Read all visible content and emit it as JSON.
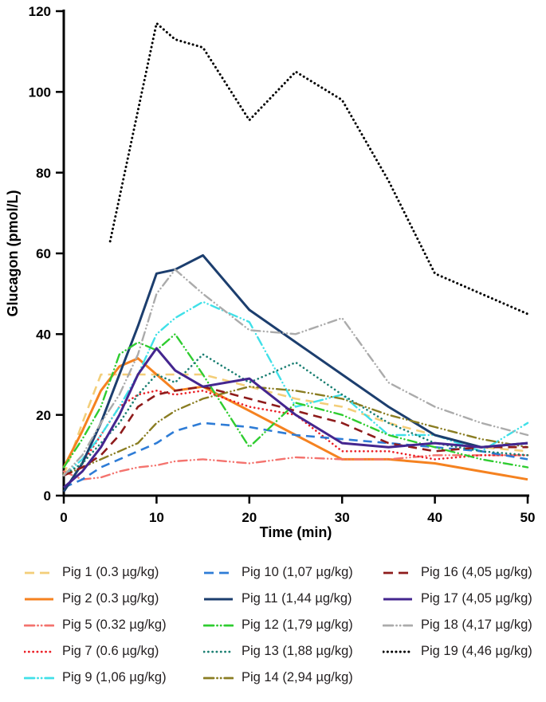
{
  "chart_data": {
    "type": "line",
    "title": "",
    "xlabel": "Time (min)",
    "ylabel": "Glucagon (pmol/L)",
    "xlim": [
      0,
      50
    ],
    "ylim": [
      0,
      120
    ],
    "xticks": [
      0,
      10,
      20,
      30,
      40,
      50
    ],
    "yticks": [
      0,
      20,
      40,
      60,
      80,
      100,
      120
    ],
    "grid": false,
    "legend_position": "bottom",
    "series": [
      {
        "name": "Pig 1 (0.3 µg/kg)",
        "color": "#F3CE79",
        "style": "dashed",
        "width": 2.6,
        "x": [
          0,
          2,
          4,
          6,
          8,
          10,
          12,
          15,
          20,
          25,
          30,
          35,
          40,
          45,
          50
        ],
        "y": [
          5,
          18,
          30,
          30,
          30,
          30,
          30,
          30,
          27,
          24,
          22,
          18,
          15,
          12,
          11
        ]
      },
      {
        "name": "Pig 2 (0.3 µg/kg)",
        "color": "#F58220",
        "style": "solid",
        "width": 3,
        "x": [
          0,
          2,
          4,
          6,
          8,
          10,
          12,
          15,
          20,
          25,
          30,
          35,
          40,
          45,
          50
        ],
        "y": [
          7,
          16,
          26,
          32,
          34,
          30,
          26,
          27,
          21,
          15,
          9,
          9,
          8,
          6,
          4
        ]
      },
      {
        "name": "Pig 5 (0.32 µg/kg)",
        "color": "#F4736E",
        "style": "dashdotdot",
        "width": 2.4,
        "x": [
          0,
          2,
          4,
          6,
          8,
          10,
          12,
          15,
          20,
          25,
          30,
          35,
          40,
          45,
          50
        ],
        "y": [
          6,
          4,
          4.5,
          6,
          7,
          7.5,
          8.5,
          9,
          8,
          9.5,
          9,
          9,
          10,
          10,
          10
        ]
      },
      {
        "name": "Pig 7 (0.6 µg/kg)",
        "color": "#EB2027",
        "style": "dotted",
        "width": 2.6,
        "x": [
          0,
          2,
          4,
          6,
          8,
          10,
          12,
          15,
          20,
          25,
          30,
          35,
          40,
          45,
          50
        ],
        "y": [
          5,
          8,
          15,
          22,
          25,
          26,
          25,
          26,
          22,
          20,
          11,
          11,
          9,
          10,
          10
        ]
      },
      {
        "name": "Pig 9 (1,06 µg/kg)",
        "color": "#40E0E8",
        "style": "dashdotdot",
        "width": 2.4,
        "x": [
          0,
          2,
          4,
          6,
          8,
          10,
          12,
          15,
          20,
          25,
          30,
          35,
          40,
          45,
          50
        ],
        "y": [
          5,
          9,
          15,
          22,
          30,
          40,
          44,
          48,
          43,
          22,
          25,
          15,
          15,
          11,
          18
        ]
      },
      {
        "name": "Pig 10 (1,07 µg/kg)",
        "color": "#2E7CD6",
        "style": "dashed",
        "width": 2.6,
        "x": [
          0,
          2,
          4,
          6,
          8,
          10,
          12,
          15,
          20,
          25,
          30,
          35,
          40,
          45,
          50
        ],
        "y": [
          2,
          4,
          7,
          9,
          11,
          13,
          16,
          18,
          17,
          15,
          14,
          13,
          12,
          11,
          9
        ]
      },
      {
        "name": "Pig 11 (1,44 µg/kg)",
        "color": "#1C3E6E",
        "style": "solid",
        "width": 3,
        "x": [
          0,
          2,
          4,
          6,
          8,
          10,
          12,
          15,
          20,
          25,
          30,
          35,
          40,
          45,
          50
        ],
        "y": [
          1,
          8,
          18,
          30,
          42,
          55,
          56,
          59.5,
          46,
          38,
          30,
          22,
          15,
          12,
          13
        ]
      },
      {
        "name": "Pig 12 (1,79 µg/kg)",
        "color": "#2FCC30",
        "style": "dashdotdot",
        "width": 2.4,
        "x": [
          0,
          2,
          4,
          6,
          8,
          10,
          12,
          15,
          20,
          25,
          30,
          35,
          40,
          45,
          50
        ],
        "y": [
          7,
          14,
          22,
          35,
          38,
          36,
          40,
          30,
          12,
          23,
          20,
          15,
          12,
          9,
          7
        ]
      },
      {
        "name": "Pig 13 (1,88 µg/kg)",
        "color": "#1A7F72",
        "style": "dotted",
        "width": 2.6,
        "x": [
          0,
          2,
          4,
          6,
          8,
          10,
          12,
          15,
          20,
          25,
          30,
          35,
          40,
          45,
          50
        ],
        "y": [
          5,
          8,
          13,
          18,
          25,
          30,
          28,
          35,
          28,
          33,
          25,
          18,
          13,
          11,
          10
        ]
      },
      {
        "name": "Pig 14 (2,94 µg/kg)",
        "color": "#8A7D22",
        "style": "dashdotdot",
        "width": 2.4,
        "x": [
          0,
          2,
          4,
          6,
          8,
          10,
          12,
          15,
          20,
          25,
          30,
          35,
          40,
          45,
          50
        ],
        "y": [
          5,
          7,
          9,
          11,
          13,
          18,
          21,
          24,
          27,
          26,
          24,
          20,
          17,
          14,
          12
        ]
      },
      {
        "name": "Pig 16 (4,05 µg/kg)",
        "color": "#8E1B1B",
        "style": "dashed",
        "width": 2.6,
        "x": [
          0,
          2,
          4,
          6,
          8,
          10,
          12,
          15,
          20,
          25,
          30,
          35,
          40,
          45,
          50
        ],
        "y": [
          5,
          7,
          10,
          15,
          22,
          25,
          26,
          27,
          24,
          21,
          18,
          13,
          11,
          12,
          12
        ]
      },
      {
        "name": "Pig 17 (4,05 µg/kg)",
        "color": "#44268F",
        "style": "solid",
        "width": 3,
        "x": [
          0,
          2,
          4,
          6,
          8,
          10,
          12,
          15,
          20,
          25,
          30,
          35,
          40,
          45,
          50
        ],
        "y": [
          2,
          6,
          12,
          20,
          30,
          36.5,
          31,
          27,
          29,
          20,
          13,
          12,
          13,
          12,
          13
        ]
      },
      {
        "name": "Pig 18 (4,17 µg/kg)",
        "color": "#ABABAB",
        "style": "dashdotdot",
        "width": 2.4,
        "x": [
          0,
          2,
          4,
          6,
          8,
          10,
          12,
          15,
          20,
          25,
          30,
          35,
          40,
          45,
          50
        ],
        "y": [
          5,
          10,
          18,
          25,
          35,
          50,
          56,
          50,
          41,
          40,
          44,
          28,
          22,
          18,
          15
        ]
      },
      {
        "name": "Pig 19 (4,46 µg/kg)",
        "color": "#000000",
        "style": "dotted",
        "width": 3,
        "x": [
          5,
          10,
          12,
          15,
          20,
          25,
          30,
          35,
          40,
          43,
          50
        ],
        "y": [
          63,
          117,
          113,
          111,
          93,
          105,
          98,
          78,
          55,
          52,
          45
        ]
      }
    ]
  }
}
